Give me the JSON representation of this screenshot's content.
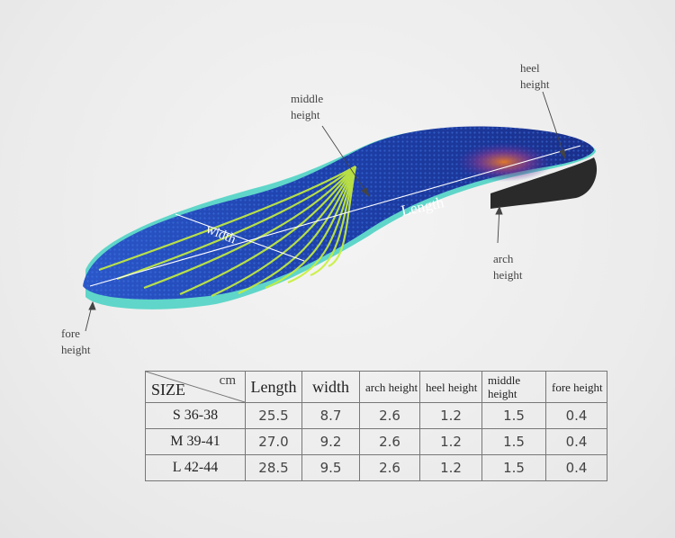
{
  "labels": {
    "middle_height": [
      "middle",
      "height"
    ],
    "heel_height": [
      "heel",
      "height"
    ],
    "arch_height": [
      "arch",
      "height"
    ],
    "fore_height": [
      "fore",
      "height"
    ],
    "length": "Length",
    "width": "width"
  },
  "table": {
    "corner_size": "SIZE",
    "corner_unit": "cm",
    "headers": [
      "Length",
      "width",
      "arch height",
      "heel height",
      "middle height",
      "fore height"
    ],
    "rows": [
      {
        "size": "S 36-38",
        "values": [
          "25.5",
          "8.7",
          "2.6",
          "1.2",
          "1.5",
          "0.4"
        ]
      },
      {
        "size": "M 39-41",
        "values": [
          "27.0",
          "9.2",
          "2.6",
          "1.2",
          "1.5",
          "0.4"
        ]
      },
      {
        "size": "L 42-44",
        "values": [
          "28.5",
          "9.5",
          "2.6",
          "1.2",
          "1.5",
          "0.4"
        ]
      }
    ]
  },
  "colors": {
    "insole_blue": "#1f45b8",
    "accent_green": "#c8f03a",
    "base_teal": "#5fd6c9"
  }
}
